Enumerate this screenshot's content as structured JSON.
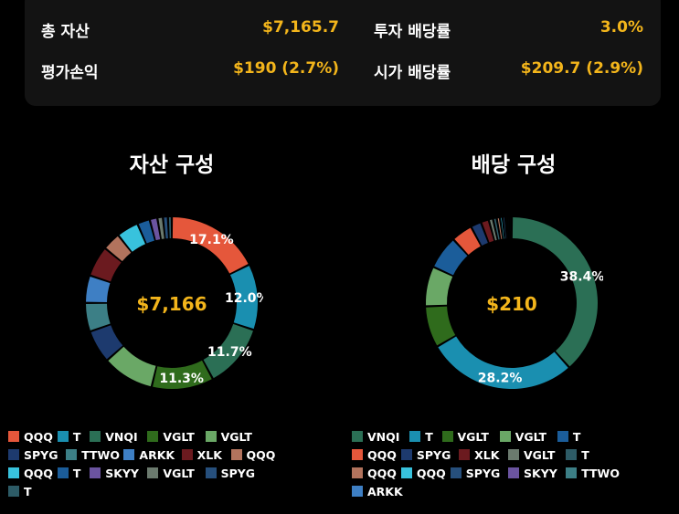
{
  "summary": {
    "total_assets_label": "총 자산",
    "total_assets_value": "$7,165.7",
    "investment_yield_label": "투자 배당률",
    "investment_yield_value": "3.0%",
    "pnl_label": "평가손익",
    "pnl_value": "$190 (2.7%)",
    "market_yield_label": "시가 배당률",
    "market_yield_value": "$209.7 (2.9%)"
  },
  "chart_data": [
    {
      "type": "pie",
      "title": "자산 구성",
      "center_label": "$7,166",
      "slices": [
        {
          "name": "QQQ",
          "value": 17.1,
          "color": "#e5573b",
          "label": "17.1%"
        },
        {
          "name": "T",
          "value": 12.0,
          "color": "#1a8fb0",
          "label": "12.0%"
        },
        {
          "name": "VNQI",
          "value": 11.7,
          "color": "#2b6f55",
          "label": "11.7%"
        },
        {
          "name": "VGLT",
          "value": 11.3,
          "color": "#2f6b1c",
          "label": "11.3%"
        },
        {
          "name": "VGLT",
          "value": 9.4,
          "color": "#6aa866",
          "label": ""
        },
        {
          "name": "SPYG",
          "value": 6.0,
          "color": "#1d3a6e",
          "label": ""
        },
        {
          "name": "TTWO",
          "value": 5.2,
          "color": "#3c7f86",
          "label": ""
        },
        {
          "name": "ARKK",
          "value": 5.0,
          "color": "#3e7fc4",
          "label": ""
        },
        {
          "name": "XLK",
          "value": 5.6,
          "color": "#6b1a1f",
          "label": ""
        },
        {
          "name": "QQQ",
          "value": 3.3,
          "color": "#b2735d",
          "label": ""
        },
        {
          "name": "QQQ",
          "value": 4.0,
          "color": "#38c2dd",
          "label": ""
        },
        {
          "name": "T",
          "value": 2.3,
          "color": "#1b5d9a",
          "label": ""
        },
        {
          "name": "SKYY",
          "value": 1.4,
          "color": "#6b54a0",
          "label": ""
        },
        {
          "name": "VGLT",
          "value": 1.0,
          "color": "#6b7a6e",
          "label": ""
        },
        {
          "name": "SPYG",
          "value": 0.9,
          "color": "#264f7c",
          "label": ""
        },
        {
          "name": "T",
          "value": 0.7,
          "color": "#2d5b66",
          "label": ""
        }
      ]
    },
    {
      "type": "pie",
      "title": "배당 구성",
      "center_label": "$210",
      "slices": [
        {
          "name": "VNQI",
          "value": 38.4,
          "color": "#2b6f55",
          "label": "38.4%"
        },
        {
          "name": "T",
          "value": 28.2,
          "color": "#1a8fb0",
          "label": "28.2%"
        },
        {
          "name": "VGLT",
          "value": 7.8,
          "color": "#2f6b1c",
          "label": ""
        },
        {
          "name": "VGLT",
          "value": 7.5,
          "color": "#6aa866",
          "label": ""
        },
        {
          "name": "T",
          "value": 6.3,
          "color": "#1b5d9a",
          "label": ""
        },
        {
          "name": "QQQ",
          "value": 4.0,
          "color": "#e5573b",
          "label": ""
        },
        {
          "name": "SPYG",
          "value": 2.0,
          "color": "#1d3a6e",
          "label": ""
        },
        {
          "name": "XLK",
          "value": 1.5,
          "color": "#6b1a1f",
          "label": ""
        },
        {
          "name": "VGLT",
          "value": 0.8,
          "color": "#6b7a6e",
          "label": ""
        },
        {
          "name": "T",
          "value": 0.7,
          "color": "#2d5b66",
          "label": ""
        },
        {
          "name": "QQQ",
          "value": 0.6,
          "color": "#b2735d",
          "label": ""
        },
        {
          "name": "QQQ",
          "value": 0.5,
          "color": "#38c2dd",
          "label": ""
        },
        {
          "name": "SPYG",
          "value": 0.5,
          "color": "#264f7c",
          "label": ""
        },
        {
          "name": "SKYY",
          "value": 0.4,
          "color": "#6b54a0",
          "label": ""
        },
        {
          "name": "TTWO",
          "value": 0.4,
          "color": "#3c7f86",
          "label": ""
        },
        {
          "name": "ARKK",
          "value": 0.4,
          "color": "#3e7fc4",
          "label": ""
        }
      ]
    }
  ],
  "legends": [
    [
      [
        {
          "name": "QQQ",
          "color": "#e5573b"
        },
        {
          "name": "T",
          "color": "#1a8fb0"
        },
        {
          "name": "VNQI",
          "color": "#2b6f55"
        },
        {
          "name": "VGLT",
          "color": "#2f6b1c"
        },
        {
          "name": "VGLT",
          "color": "#6aa866"
        }
      ],
      [
        {
          "name": "SPYG",
          "color": "#1d3a6e"
        },
        {
          "name": "TTWO",
          "color": "#3c7f86"
        },
        {
          "name": "ARKK",
          "color": "#3e7fc4"
        },
        {
          "name": "XLK",
          "color": "#6b1a1f"
        },
        {
          "name": "QQQ",
          "color": "#b2735d"
        }
      ],
      [
        {
          "name": "QQQ",
          "color": "#38c2dd"
        },
        {
          "name": "T",
          "color": "#1b5d9a"
        },
        {
          "name": "SKYY",
          "color": "#6b54a0"
        },
        {
          "name": "VGLT",
          "color": "#6b7a6e"
        },
        {
          "name": "SPYG",
          "color": "#264f7c"
        }
      ],
      [
        {
          "name": "T",
          "color": "#2d5b66"
        }
      ]
    ],
    [
      [
        {
          "name": "VNQI",
          "color": "#2b6f55"
        },
        {
          "name": "T",
          "color": "#1a8fb0"
        },
        {
          "name": "VGLT",
          "color": "#2f6b1c"
        },
        {
          "name": "VGLT",
          "color": "#6aa866"
        },
        {
          "name": "T",
          "color": "#1b5d9a"
        }
      ],
      [
        {
          "name": "QQQ",
          "color": "#e5573b"
        },
        {
          "name": "SPYG",
          "color": "#1d3a6e"
        },
        {
          "name": "XLK",
          "color": "#6b1a1f"
        },
        {
          "name": "VGLT",
          "color": "#6b7a6e"
        },
        {
          "name": "T",
          "color": "#2d5b66"
        }
      ],
      [
        {
          "name": "QQQ",
          "color": "#b2735d"
        },
        {
          "name": "QQQ",
          "color": "#38c2dd"
        },
        {
          "name": "SPYG",
          "color": "#264f7c"
        },
        {
          "name": "SKYY",
          "color": "#6b54a0"
        },
        {
          "name": "TTWO",
          "color": "#3c7f86"
        }
      ],
      [
        {
          "name": "ARKK",
          "color": "#3e7fc4"
        }
      ]
    ]
  ]
}
